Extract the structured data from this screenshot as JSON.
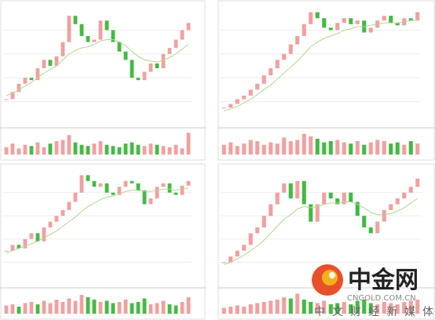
{
  "chart_data": [
    {
      "type": "candlestick",
      "ylim": [
        0,
        100
      ],
      "vlim": [
        0,
        100
      ],
      "close": [
        22,
        28,
        35,
        40,
        38,
        48,
        55,
        50,
        58,
        70,
        92,
        85,
        75,
        70,
        72,
        88,
        80,
        70,
        62,
        55,
        40,
        38,
        45,
        52,
        48,
        60,
        65,
        72,
        80,
        86
      ],
      "ma": [
        25,
        27,
        30,
        33,
        36,
        40,
        44,
        47,
        50,
        55,
        60,
        63,
        65,
        66,
        68,
        71,
        72,
        72,
        70,
        67,
        62,
        58,
        55,
        54,
        53,
        55,
        57,
        60,
        64,
        68
      ],
      "volume": [
        30,
        45,
        25,
        40,
        35,
        50,
        30,
        45,
        55,
        60,
        80,
        50,
        40,
        35,
        45,
        55,
        40,
        35,
        30,
        45,
        50,
        40,
        35,
        45,
        40,
        35,
        30,
        40,
        25,
        90
      ]
    },
    {
      "type": "candlestick",
      "ylim": [
        0,
        100
      ],
      "vlim": [
        0,
        100
      ],
      "close": [
        15,
        18,
        22,
        25,
        30,
        35,
        42,
        48,
        55,
        60,
        68,
        75,
        85,
        95,
        90,
        82,
        80,
        86,
        90,
        85,
        88,
        78,
        82,
        88,
        92,
        86,
        84,
        90,
        88,
        95
      ],
      "ma": [
        12,
        14,
        16,
        19,
        22,
        26,
        30,
        34,
        39,
        44,
        49,
        54,
        60,
        66,
        70,
        73,
        75,
        77,
        80,
        81,
        83,
        83,
        84,
        85,
        86,
        86,
        86,
        87,
        88,
        89
      ],
      "volume": [
        40,
        50,
        35,
        45,
        60,
        55,
        40,
        50,
        45,
        70,
        55,
        60,
        85,
        75,
        65,
        50,
        55,
        60,
        50,
        45,
        55,
        40,
        50,
        60,
        55,
        45,
        50,
        40,
        55,
        45
      ]
    },
    {
      "type": "candlestick",
      "ylim": [
        0,
        100
      ],
      "vlim": [
        0,
        100
      ],
      "close": [
        30,
        35,
        32,
        40,
        45,
        38,
        50,
        55,
        60,
        65,
        72,
        80,
        95,
        90,
        85,
        88,
        80,
        78,
        85,
        90,
        88,
        82,
        70,
        75,
        85,
        88,
        80,
        78,
        86,
        90
      ],
      "ma": [
        28,
        30,
        32,
        34,
        36,
        38,
        41,
        44,
        47,
        51,
        55,
        59,
        64,
        68,
        71,
        74,
        76,
        77,
        79,
        81,
        82,
        82,
        81,
        81,
        82,
        83,
        83,
        82,
        83,
        84
      ],
      "volume": [
        35,
        40,
        30,
        45,
        50,
        40,
        55,
        45,
        60,
        50,
        65,
        55,
        80,
        70,
        60,
        50,
        55,
        45,
        50,
        60,
        45,
        50,
        65,
        40,
        45,
        55,
        40,
        35,
        50,
        70
      ]
    },
    {
      "type": "candlestick",
      "ylim": [
        0,
        100
      ],
      "vlim": [
        0,
        100
      ],
      "close": [
        20,
        25,
        30,
        35,
        45,
        50,
        60,
        70,
        80,
        88,
        75,
        90,
        70,
        55,
        70,
        80,
        75,
        70,
        80,
        72,
        60,
        50,
        45,
        55,
        65,
        70,
        75,
        80,
        85,
        92
      ],
      "ma": [
        18,
        20,
        23,
        26,
        30,
        34,
        39,
        45,
        51,
        57,
        61,
        66,
        68,
        67,
        68,
        70,
        71,
        71,
        72,
        72,
        70,
        67,
        63,
        61,
        61,
        62,
        64,
        67,
        71,
        75
      ],
      "volume": [
        25,
        30,
        35,
        30,
        40,
        45,
        50,
        55,
        60,
        70,
        65,
        85,
        60,
        50,
        45,
        55,
        40,
        45,
        50,
        40,
        55,
        60,
        45,
        40,
        50,
        45,
        40,
        50,
        55,
        60
      ]
    }
  ],
  "watermark": {
    "brand": "中金网",
    "domain": "CNGOLD.COM.CN",
    "slogan": "中文财经新媒体"
  }
}
